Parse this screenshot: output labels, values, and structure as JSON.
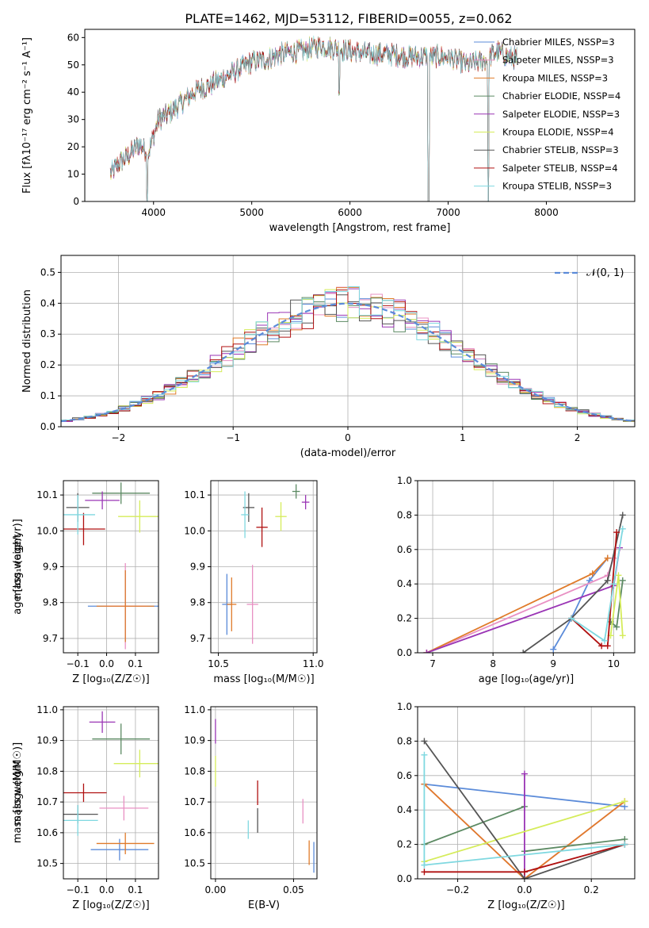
{
  "figure_title": "PLATE=1462, MJD=53112, FIBERID=0055, z=0.062",
  "series_colors": [
    "#5b8bd9",
    "#e890c3",
    "#e07b2a",
    "#5c8a63",
    "#9a35b5",
    "#d5ec5a",
    "#555555",
    "#b01010",
    "#7fd8e0"
  ],
  "chart_data": [
    {
      "type": "line",
      "title": "PLATE=1462, MJD=53112, FIBERID=0055, z=0.062",
      "xlabel": "wavelength [Angstrom, rest frame]",
      "ylabel": "Flux [fλ10⁻¹⁷ erg cm⁻² s⁻¹ A⁻¹]",
      "xlim": [
        3300,
        8900
      ],
      "ylim": [
        0,
        63
      ],
      "xticks": [
        "4000",
        "5000",
        "6000",
        "7000",
        "8000"
      ],
      "yticks": [
        "0",
        "10",
        "20",
        "30",
        "40",
        "50",
        "60"
      ],
      "legend_position": "upper-right",
      "legend": [
        "Chabrier MILES, NSSP=3",
        "Salpeter MILES, NSSP=3",
        "Kroupa MILES, NSSP=3",
        "Chabrier ELODIE, NSSP=4",
        "Salpeter ELODIE, NSSP=3",
        "Kroupa ELODIE, NSSP=4",
        "Chabrier STELIB, NSSP=3",
        "Salpeter STELIB, NSSP=4",
        "Kroupa STELIB, NSSP=3"
      ],
      "continuum": {
        "x": [
          3560,
          3650,
          3750,
          3850,
          3950,
          4050,
          4150,
          4250,
          4350,
          4450,
          4550,
          4700,
          4850,
          5000,
          5150,
          5300,
          5500,
          5700,
          5850,
          6000,
          6200,
          6400,
          6600,
          6800,
          7000,
          7200,
          7400,
          7500,
          7600,
          7800,
          8000,
          8300,
          8600
        ],
        "y": [
          10,
          14,
          17,
          21,
          18,
          30,
          32,
          35,
          38,
          41,
          42,
          45,
          48,
          51,
          52,
          54,
          55,
          57,
          56,
          55,
          54,
          54,
          53,
          53,
          53,
          50,
          52,
          55,
          53,
          52,
          51,
          50,
          49
        ]
      },
      "dips": [
        {
          "x": 3934,
          "y": 0
        },
        {
          "x": 5890,
          "y": 40
        },
        {
          "x": 6800,
          "y": 0
        },
        {
          "x": 7410,
          "y": 0
        }
      ]
    },
    {
      "type": "histogram",
      "xlabel": "(data-model)/error",
      "ylabel": "Normed distribution",
      "xlim": [
        -2.5,
        2.5
      ],
      "ylim": [
        0,
        0.555
      ],
      "xticks": [
        "−2",
        "−1",
        "0",
        "1",
        "2"
      ],
      "yticks": [
        "0.0",
        "0.1",
        "0.2",
        "0.3",
        "0.4",
        "0.5"
      ],
      "grid": true,
      "reference_curve": {
        "label": "𝒩(0, 1)",
        "mean": 0,
        "sigma": 1
      },
      "bin_width": 0.1,
      "bin_start": -2.5
    },
    {
      "type": "scatter",
      "xlabel": "Z [log₁₀(Z/Z☉)]",
      "ylabel": "age  [log₁₀(age/yr)]",
      "xlim": [
        -0.15,
        0.18
      ],
      "ylim": [
        9.66,
        10.14
      ],
      "xticks": [
        "−0.1",
        "0.0",
        "0.1"
      ],
      "yticks": [
        "9.7",
        "9.8",
        "9.9",
        "10.0",
        "10.1"
      ],
      "points": [
        {
          "x": 0.065,
          "y": 9.79,
          "xerr": 0.13,
          "yerr": 0.1,
          "color": "#5b8bd9"
        },
        {
          "x": 0.065,
          "y": 9.79,
          "xerr": 0.075,
          "yerr": 0.12,
          "color": "#e890c3"
        },
        {
          "x": 0.065,
          "y": 9.79,
          "xerr": 0.1,
          "yerr": 0.1,
          "color": "#e07b2a"
        },
        {
          "x": 0.05,
          "y": 10.105,
          "xerr": 0.1,
          "yerr": 0.03,
          "color": "#5c8a63"
        },
        {
          "x": -0.015,
          "y": 10.085,
          "xerr": 0.06,
          "yerr": 0.025,
          "color": "#9a35b5"
        },
        {
          "x": 0.115,
          "y": 10.04,
          "xerr": 0.075,
          "yerr": 0.045,
          "color": "#d5ec5a"
        },
        {
          "x": -0.1,
          "y": 10.065,
          "xerr": 0.04,
          "yerr": 0.04,
          "color": "#555555"
        },
        {
          "x": -0.08,
          "y": 10.005,
          "xerr": 0.075,
          "yerr": 0.045,
          "color": "#b01010"
        },
        {
          "x": -0.1,
          "y": 10.045,
          "xerr": 0.06,
          "yerr": 0.055,
          "color": "#7fd8e0"
        }
      ]
    },
    {
      "type": "scatter",
      "xlabel": "mass [log₁₀(M/M☉)]",
      "ylabel": "",
      "xlim": [
        10.46,
        11.02
      ],
      "ylim": [
        9.66,
        10.14
      ],
      "xticks": [
        "10.5",
        "11.0"
      ],
      "yticks": [
        "9.7",
        "9.8",
        "9.9",
        "10.0",
        "10.1"
      ],
      "points": [
        {
          "x": 10.545,
          "y": 9.795,
          "xerr": 0.025,
          "yerr": 0.085,
          "color": "#5b8bd9"
        },
        {
          "x": 10.68,
          "y": 9.795,
          "xerr": 0.03,
          "yerr": 0.11,
          "color": "#e890c3"
        },
        {
          "x": 10.57,
          "y": 9.795,
          "xerr": 0.025,
          "yerr": 0.075,
          "color": "#e07b2a"
        },
        {
          "x": 10.91,
          "y": 10.11,
          "xerr": 0.02,
          "yerr": 0.02,
          "color": "#5c8a63"
        },
        {
          "x": 10.96,
          "y": 10.08,
          "xerr": 0.02,
          "yerr": 0.02,
          "color": "#9a35b5"
        },
        {
          "x": 10.83,
          "y": 10.04,
          "xerr": 0.03,
          "yerr": 0.04,
          "color": "#d5ec5a"
        },
        {
          "x": 10.66,
          "y": 10.065,
          "xerr": 0.03,
          "yerr": 0.04,
          "color": "#555555"
        },
        {
          "x": 10.73,
          "y": 10.01,
          "xerr": 0.03,
          "yerr": 0.055,
          "color": "#b01010"
        },
        {
          "x": 10.64,
          "y": 10.045,
          "xerr": 0.02,
          "yerr": 0.065,
          "color": "#7fd8e0"
        }
      ]
    },
    {
      "type": "line",
      "xlabel": "age  [log₁₀(age/yr)]",
      "ylabel": "mass weight",
      "xlim": [
        6.75,
        10.35
      ],
      "ylim": [
        0,
        1.0
      ],
      "xticks": [
        "7",
        "8",
        "9",
        "10"
      ],
      "yticks": [
        "0.0",
        "0.2",
        "0.4",
        "0.6",
        "0.8",
        "1.0"
      ],
      "grid": true,
      "series": [
        {
          "color": "#5b8bd9",
          "x": [
            9.0,
            9.3,
            9.6,
            9.9
          ],
          "y": [
            0.02,
            0.2,
            0.42,
            0.55
          ]
        },
        {
          "color": "#e890c3",
          "x": [
            6.9,
            9.9,
            10.0
          ],
          "y": [
            0.0,
            0.45,
            0.55
          ]
        },
        {
          "color": "#e07b2a",
          "x": [
            6.9,
            9.65,
            9.9
          ],
          "y": [
            0.0,
            0.46,
            0.55
          ]
        },
        {
          "color": "#5c8a63",
          "x": [
            9.95,
            10.05,
            10.15
          ],
          "y": [
            0.18,
            0.15,
            0.42
          ]
        },
        {
          "color": "#9a35b5",
          "x": [
            6.9,
            10.0,
            10.1
          ],
          "y": [
            0.0,
            0.39,
            0.61
          ]
        },
        {
          "color": "#d5ec5a",
          "x": [
            9.95,
            10.08,
            10.15
          ],
          "y": [
            0.1,
            0.45,
            0.1
          ]
        },
        {
          "color": "#555555",
          "x": [
            8.5,
            9.3,
            9.9,
            10.15
          ],
          "y": [
            0.0,
            0.2,
            0.42,
            0.8
          ]
        },
        {
          "color": "#b01010",
          "x": [
            9.3,
            9.8,
            9.9,
            10.05
          ],
          "y": [
            0.2,
            0.04,
            0.04,
            0.7
          ]
        },
        {
          "color": "#7fd8e0",
          "x": [
            9.3,
            9.85,
            10.0,
            10.15
          ],
          "y": [
            0.2,
            0.07,
            0.4,
            0.72
          ]
        }
      ]
    },
    {
      "type": "scatter",
      "xlabel": "Z [log₁₀(Z/Z☉)]",
      "ylabel": "mass [log₁₀(M/M☉)]",
      "xlim": [
        -0.15,
        0.18
      ],
      "ylim": [
        10.45,
        11.01
      ],
      "xticks": [
        "−0.1",
        "0.0",
        "0.1"
      ],
      "yticks": [
        "10.5",
        "10.6",
        "10.7",
        "10.8",
        "10.9",
        "11.0"
      ],
      "points": [
        {
          "x": 0.045,
          "y": 10.545,
          "xerr": 0.1,
          "yerr": 0.035,
          "color": "#5b8bd9"
        },
        {
          "x": 0.06,
          "y": 10.68,
          "xerr": 0.085,
          "yerr": 0.04,
          "color": "#e890c3"
        },
        {
          "x": 0.065,
          "y": 10.565,
          "xerr": 0.1,
          "yerr": 0.035,
          "color": "#e07b2a"
        },
        {
          "x": 0.05,
          "y": 10.905,
          "xerr": 0.1,
          "yerr": 0.05,
          "color": "#5c8a63"
        },
        {
          "x": -0.015,
          "y": 10.96,
          "xerr": 0.045,
          "yerr": 0.035,
          "color": "#9a35b5"
        },
        {
          "x": 0.115,
          "y": 10.825,
          "xerr": 0.09,
          "yerr": 0.045,
          "color": "#d5ec5a"
        },
        {
          "x": -0.1,
          "y": 10.66,
          "xerr": 0.07,
          "yerr": 0.03,
          "color": "#555555"
        },
        {
          "x": -0.08,
          "y": 10.73,
          "xerr": 0.08,
          "yerr": 0.03,
          "color": "#b01010"
        },
        {
          "x": -0.1,
          "y": 10.64,
          "xerr": 0.07,
          "yerr": 0.05,
          "color": "#7fd8e0"
        }
      ]
    },
    {
      "type": "scatter",
      "xlabel": "E(B-V)",
      "ylabel": "",
      "xlim": [
        -0.003,
        0.065
      ],
      "ylim": [
        10.45,
        11.01
      ],
      "xticks": [
        "0.00",
        "0.05"
      ],
      "yticks": [
        "10.5",
        "10.6",
        "10.7",
        "10.8",
        "10.9",
        "11.0"
      ],
      "points": [
        {
          "x": 0.063,
          "y": 10.52,
          "xerr": 0,
          "yerr": 0.05,
          "color": "#5b8bd9"
        },
        {
          "x": 0.056,
          "y": 10.67,
          "xerr": 0,
          "yerr": 0.04,
          "color": "#e890c3"
        },
        {
          "x": 0.06,
          "y": 10.535,
          "xerr": 0,
          "yerr": 0.04,
          "color": "#e07b2a"
        },
        {
          "x": 0.0,
          "y": 10.93,
          "xerr": 0,
          "yerr": 0.04,
          "color": "#9a35b5"
        },
        {
          "x": 0.0,
          "y": 10.8,
          "xerr": 0,
          "yerr": 0.05,
          "color": "#d5ec5a"
        },
        {
          "x": 0.027,
          "y": 10.64,
          "xerr": 0,
          "yerr": 0.04,
          "color": "#555555"
        },
        {
          "x": 0.027,
          "y": 10.73,
          "xerr": 0,
          "yerr": 0.04,
          "color": "#b01010"
        },
        {
          "x": 0.021,
          "y": 10.61,
          "xerr": 0,
          "yerr": 0.03,
          "color": "#7fd8e0"
        }
      ]
    },
    {
      "type": "line",
      "xlabel": "Z [log₁₀(Z/Z☉)]",
      "ylabel": "mass weight",
      "xlim": [
        -0.32,
        0.33
      ],
      "ylim": [
        0,
        1.0
      ],
      "xticks": [
        "−0.2",
        "0.0",
        "0.2"
      ],
      "yticks": [
        "0.0",
        "0.2",
        "0.4",
        "0.6",
        "0.8",
        "1.0"
      ],
      "grid": true,
      "series": [
        {
          "color": "#5b8bd9",
          "x": [
            -0.3,
            0.3
          ],
          "y": [
            0.55,
            0.42
          ]
        },
        {
          "color": "#e890c3",
          "x": [
            -0.3,
            0.0,
            0.3
          ],
          "y": [
            0.55,
            0.0,
            0.45
          ]
        },
        {
          "color": "#e07b2a",
          "x": [
            -0.3,
            0.0,
            0.3
          ],
          "y": [
            0.55,
            0.0,
            0.45
          ]
        },
        {
          "color": "#5c8a63",
          "x": [
            -0.3,
            0.0
          ],
          "y": [
            0.2,
            0.42
          ]
        },
        {
          "color": "#5c8a63",
          "x": [
            0.0,
            0.3
          ],
          "y": [
            0.16,
            0.23
          ]
        },
        {
          "color": "#9a35b5",
          "x": [
            0.0,
            0.0
          ],
          "y": [
            0.0,
            0.61
          ]
        },
        {
          "color": "#d5ec5a",
          "x": [
            -0.3,
            0.3
          ],
          "y": [
            0.1,
            0.45
          ]
        },
        {
          "color": "#555555",
          "x": [
            -0.3,
            0.0,
            0.3
          ],
          "y": [
            0.8,
            0.0,
            0.2
          ]
        },
        {
          "color": "#b01010",
          "x": [
            -0.3,
            0.0,
            0.3
          ],
          "y": [
            0.04,
            0.04,
            0.2
          ]
        },
        {
          "color": "#7fd8e0",
          "x": [
            -0.3,
            0.3
          ],
          "y": [
            0.08,
            0.2
          ]
        },
        {
          "color": "#7fd8e0",
          "x": [
            -0.3,
            -0.3
          ],
          "y": [
            0.72,
            0.08
          ]
        }
      ]
    }
  ]
}
